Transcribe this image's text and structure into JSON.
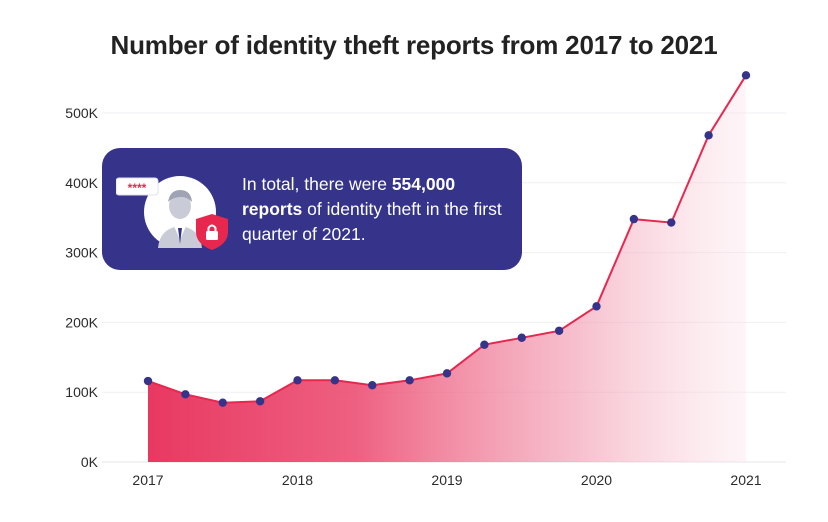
{
  "title": "Number of identity theft reports from 2017 to 2021",
  "callout": {
    "text_before": "In total, there were ",
    "text_bold": "554,000 reports",
    "text_after": " of identity theft in the first quarter of 2021.",
    "password_mask": "****",
    "icon_name": "identity-theft-user-lock-icon"
  },
  "colors": {
    "line": "#e8274f",
    "point": "#35338a",
    "fill_start": "#ea3360",
    "callout_bg": "#35338a",
    "accent": "#e8274f"
  },
  "chart_data": {
    "type": "area",
    "title": "Number of identity theft reports from 2017 to 2021",
    "xlabel": "",
    "ylabel": "",
    "x_tick_labels": [
      "2017",
      "2018",
      "2019",
      "2020",
      "2021"
    ],
    "y_tick_labels": [
      "0K",
      "100K",
      "200K",
      "300K",
      "400K",
      "500K"
    ],
    "ylim": [
      0,
      500000
    ],
    "xlim": [
      2017,
      2021
    ],
    "grid": true,
    "series": [
      {
        "x": [
          2017.0,
          2017.25,
          2017.5,
          2017.75,
          2018.0,
          2018.25,
          2018.5,
          2018.75,
          2019.0,
          2019.25,
          2019.5,
          2019.75,
          2020.0,
          2020.25,
          2020.5,
          2020.75,
          2021.0
        ],
        "values": [
          116000,
          97000,
          85000,
          87000,
          117000,
          117000,
          110000,
          117000,
          127000,
          168000,
          178000,
          188000,
          223000,
          348000,
          343000,
          468000,
          554000
        ]
      }
    ]
  }
}
